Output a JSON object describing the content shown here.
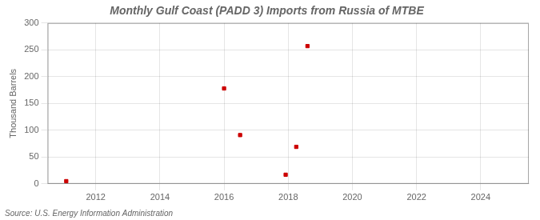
{
  "chart_data": {
    "type": "scatter",
    "title": "Monthly Gulf Coast (PADD 3) Imports from Russia of MTBE",
    "ylabel": "Thousand Barrels",
    "source": "Source: U.S. Energy Information Administration",
    "x": [
      2011.08,
      2016.0,
      2016.5,
      2017.92,
      2018.25,
      2018.6
    ],
    "values": [
      5,
      178,
      91,
      17,
      69,
      257
    ],
    "color": "#cc0000",
    "marker": "square",
    "xlim": [
      2010.5,
      2025.5
    ],
    "ylim": [
      0,
      300
    ],
    "xticks": [
      2012,
      2014,
      2016,
      2018,
      2020,
      2022,
      2024
    ],
    "yticks": [
      0,
      50,
      100,
      150,
      200,
      250,
      300
    ],
    "grid": true
  }
}
